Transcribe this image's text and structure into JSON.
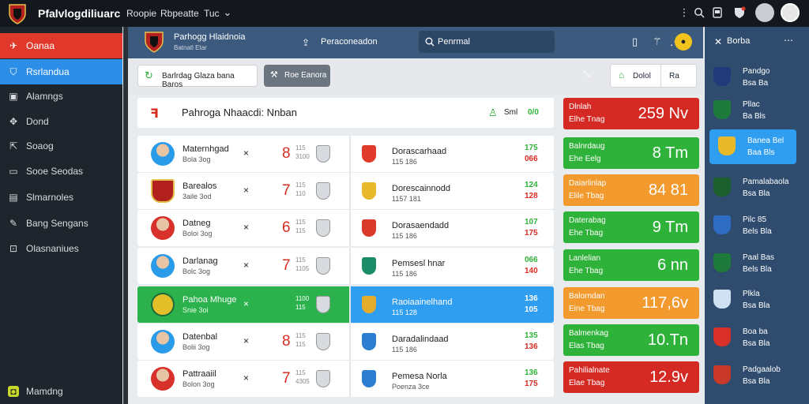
{
  "topbar": {
    "title": "Pfalvlogdiliuarc",
    "nav": [
      "Roopie",
      "Rbpeatte",
      "Tuc"
    ],
    "icons": [
      "chevron-down-icon",
      "more-vert-icon",
      "search-icon",
      "tablet-icon",
      "shield-icon",
      "avatar",
      "user-avatar"
    ]
  },
  "sidebar": {
    "items": [
      {
        "label": "Oanaa",
        "icon": "plane-icon"
      },
      {
        "label": "Rsrlandua",
        "icon": "shield-icon"
      },
      {
        "label": "Alamngs",
        "icon": "bag-icon"
      },
      {
        "label": "Dond",
        "icon": "crosshair-icon"
      },
      {
        "label": "Soaog",
        "icon": "export-icon"
      },
      {
        "label": "Sooe Seodas",
        "icon": "monitor-icon"
      },
      {
        "label": "Slmarnoles",
        "icon": "screen-icon"
      },
      {
        "label": "Bang Sengans",
        "icon": "pencil-icon"
      },
      {
        "label": "Olasnaniues",
        "icon": "lock-icon"
      }
    ],
    "footer": "Mamdng"
  },
  "header": {
    "team_title": "Parhogg Hlaidnoia",
    "team_sub": "Batnatl Etar",
    "tab_label": "Peraconeadon",
    "search_placeholder": "Penrmal"
  },
  "toolbar": {
    "filter_label": "Barlrdag  Glaza  bana Baros",
    "mode_label": "Roe Eanora",
    "right_a": "Dolol",
    "right_b": "Ra"
  },
  "matches": {
    "title": "Pahroga Nhaacdi: Nnban",
    "summary": "Sml",
    "summary_count": "0/0",
    "rows": [
      {
        "name": "Maternhgad",
        "sub": "Bola 3og",
        "score": "8",
        "mini1": "115",
        "mini2": "3100",
        "away_name": "Dorascarhaad",
        "away_sub": "115 186",
        "odd1": "175",
        "odd2": "066",
        "player": "blue"
      },
      {
        "name": "Barealos",
        "sub": "3aile 3od",
        "score": "7",
        "mini1": "115",
        "mini2": "110",
        "away_name": "Dorescainnodd",
        "away_sub": "1157 181",
        "odd1": "124",
        "odd2": "128",
        "player": "crest"
      },
      {
        "name": "Datneg",
        "sub": "Boloi 3og",
        "score": "6",
        "mini1": "115",
        "mini2": "115",
        "away_name": "Dorasaendadd",
        "away_sub": "115 186",
        "odd1": "107",
        "odd2": "175",
        "player": "red"
      },
      {
        "name": "Darlanag",
        "sub": "Bolc 3og",
        "score": "7",
        "mini1": "115",
        "mini2": "1105",
        "away_name": "Pemsesl hnar",
        "away_sub": "115 186",
        "odd1": "066",
        "odd2": "140",
        "player": "blue"
      },
      {
        "name": "Pahoa Mhuge",
        "sub": "Snie 3oi",
        "score": "",
        "mini1": "1100",
        "mini2": "115",
        "away_name": "Raoiaainelhand",
        "away_sub": "115 128",
        "odd1": "136",
        "odd2": "105",
        "player": "none"
      },
      {
        "name": "Datenbal",
        "sub": "Bolii 3og",
        "score": "8",
        "mini1": "115",
        "mini2": "115",
        "away_name": "Daradalindaad",
        "away_sub": "115 186",
        "odd1": "135",
        "odd2": "136",
        "player": "blue"
      },
      {
        "name": "Pattraaiil",
        "sub": "Bolon 3og",
        "score": "7",
        "mini1": "115",
        "mini2": "4305",
        "away_name": "Pemesa Norla",
        "away_sub": "Poenza 3ce",
        "odd1": "136",
        "odd2": "175",
        "player": "red"
      }
    ]
  },
  "odds_col": [
    {
      "t1": "Dlnlah",
      "t2": "Elhe Tnag",
      "big": "259 Nv",
      "color": "#d42a23"
    },
    {
      "t1": "Balnrdaug",
      "t2": "Ehe Eelg",
      "big": "8 Tm",
      "color": "#2fb239"
    },
    {
      "t1": "Daiarlinlap",
      "t2": "Elile Tbag",
      "big": "84 81",
      "color": "#f29a2e"
    },
    {
      "t1": "Daterabag",
      "t2": "Ehe Tbag",
      "big": "9 Tm",
      "color": "#2fb239"
    },
    {
      "t1": "Lanlelian",
      "t2": "Ehe Tbag",
      "big": "6 nn",
      "color": "#2fb239"
    },
    {
      "t1": "Balorndan",
      "t2": "Eine Tbag",
      "big": "117,6v",
      "color": "#f29a2e"
    },
    {
      "t1": "Balmenkag",
      "t2": "Elas Tbag",
      "big": "10.Tn",
      "color": "#2fb239"
    },
    {
      "t1": "Pahilialnate",
      "t2": "Elae Tbag",
      "big": "12.9v",
      "color": "#d42a23"
    }
  ],
  "right": {
    "title": "Borba",
    "items": [
      {
        "l1": "Pandgo",
        "l2": "Bsa Ba",
        "crest": "#223a7a",
        "sel": false
      },
      {
        "l1": "Pllac",
        "l2": "Ba Bls",
        "crest": "#1e7a3b",
        "sel": false
      },
      {
        "l1": "Banea Bel",
        "l2": "Baa Bls",
        "crest": "#e8b92a",
        "sel": true
      },
      {
        "l1": "Pamalabaola",
        "l2": "Bsa Bla",
        "crest": "#1b5f2d",
        "sel": false
      },
      {
        "l1": "Pilc 85",
        "l2": "Bels Bla",
        "crest": "#2d6cc2",
        "sel": false
      },
      {
        "l1": "Paal Bas",
        "l2": "Bels Bla",
        "crest": "#1e7a3b",
        "sel": false
      },
      {
        "l1": "Plkla",
        "l2": "Bsa Bla",
        "crest": "#cfe1f2",
        "sel": false
      },
      {
        "l1": "Boa ba",
        "l2": "Bsa Bla",
        "crest": "#d9302a",
        "sel": false
      },
      {
        "l1": "Padgaalob",
        "l2": "Bsa Bla",
        "crest": "#c9392a",
        "sel": false
      }
    ]
  },
  "colors": {
    "accent_blue": "#2f9df0",
    "accent_red": "#e0392c",
    "green": "#2fb239",
    "orange": "#f29a2e",
    "odd_red": "#d72b20",
    "odd_green": "#2fb239"
  }
}
